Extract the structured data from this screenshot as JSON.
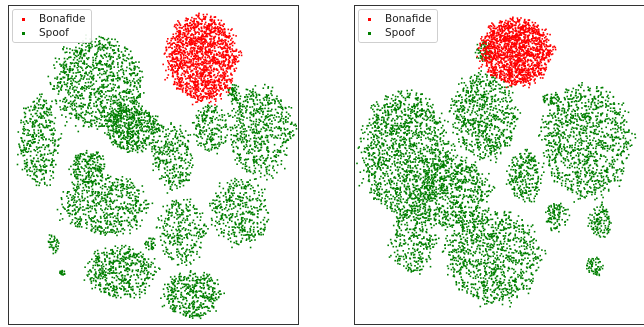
{
  "chart_data": [
    {
      "type": "scatter",
      "title": "",
      "xlabel": "",
      "ylabel": "",
      "grid": false,
      "axes_ticks": false,
      "legend_position": "top-left",
      "series": [
        {
          "name": "Bonafide",
          "color": "#ff0000",
          "clusters": [
            {
              "x": 0.66,
              "y": 0.84,
              "rx": 0.12,
              "ry": 0.13,
              "n": 1600
            }
          ]
        },
        {
          "name": "Spoof",
          "color": "#007f00",
          "clusters": [
            {
              "x": 0.3,
              "y": 0.76,
              "rx": 0.15,
              "ry": 0.14,
              "n": 1000
            },
            {
              "x": 0.42,
              "y": 0.62,
              "rx": 0.09,
              "ry": 0.07,
              "n": 500
            },
            {
              "x": 0.1,
              "y": 0.58,
              "rx": 0.07,
              "ry": 0.14,
              "n": 400
            },
            {
              "x": 0.27,
              "y": 0.5,
              "rx": 0.06,
              "ry": 0.05,
              "n": 200
            },
            {
              "x": 0.56,
              "y": 0.53,
              "rx": 0.07,
              "ry": 0.1,
              "n": 300
            },
            {
              "x": 0.69,
              "y": 0.62,
              "rx": 0.06,
              "ry": 0.07,
              "n": 200
            },
            {
              "x": 0.86,
              "y": 0.61,
              "rx": 0.11,
              "ry": 0.14,
              "n": 600
            },
            {
              "x": 0.33,
              "y": 0.38,
              "rx": 0.15,
              "ry": 0.09,
              "n": 600
            },
            {
              "x": 0.79,
              "y": 0.36,
              "rx": 0.1,
              "ry": 0.1,
              "n": 400
            },
            {
              "x": 0.59,
              "y": 0.3,
              "rx": 0.08,
              "ry": 0.1,
              "n": 300
            },
            {
              "x": 0.38,
              "y": 0.17,
              "rx": 0.12,
              "ry": 0.08,
              "n": 500
            },
            {
              "x": 0.63,
              "y": 0.1,
              "rx": 0.1,
              "ry": 0.07,
              "n": 400
            },
            {
              "x": 0.15,
              "y": 0.26,
              "rx": 0.02,
              "ry": 0.03,
              "n": 40
            },
            {
              "x": 0.48,
              "y": 0.26,
              "rx": 0.02,
              "ry": 0.02,
              "n": 30
            },
            {
              "x": 0.18,
              "y": 0.17,
              "rx": 0.01,
              "ry": 0.01,
              "n": 15
            },
            {
              "x": 0.77,
              "y": 0.73,
              "rx": 0.02,
              "ry": 0.03,
              "n": 50
            }
          ]
        }
      ]
    },
    {
      "type": "scatter",
      "title": "",
      "xlabel": "",
      "ylabel": "",
      "grid": false,
      "axes_ticks": false,
      "legend_position": "top-left",
      "series": [
        {
          "name": "Bonafide",
          "color": "#ff0000",
          "clusters": [
            {
              "x": 0.55,
              "y": 0.86,
              "rx": 0.12,
              "ry": 0.1,
              "n": 1600
            }
          ]
        },
        {
          "name": "Spoof",
          "color": "#007f00",
          "clusters": [
            {
              "x": 0.17,
              "y": 0.54,
              "rx": 0.15,
              "ry": 0.19,
              "n": 1400
            },
            {
              "x": 0.44,
              "y": 0.66,
              "rx": 0.11,
              "ry": 0.13,
              "n": 700
            },
            {
              "x": 0.33,
              "y": 0.42,
              "rx": 0.13,
              "ry": 0.11,
              "n": 700
            },
            {
              "x": 0.79,
              "y": 0.58,
              "rx": 0.15,
              "ry": 0.17,
              "n": 1100
            },
            {
              "x": 0.58,
              "y": 0.47,
              "rx": 0.06,
              "ry": 0.08,
              "n": 250
            },
            {
              "x": 0.2,
              "y": 0.27,
              "rx": 0.08,
              "ry": 0.1,
              "n": 300
            },
            {
              "x": 0.47,
              "y": 0.22,
              "rx": 0.16,
              "ry": 0.14,
              "n": 1000
            },
            {
              "x": 0.69,
              "y": 0.34,
              "rx": 0.04,
              "ry": 0.05,
              "n": 100
            },
            {
              "x": 0.84,
              "y": 0.33,
              "rx": 0.04,
              "ry": 0.05,
              "n": 120
            },
            {
              "x": 0.82,
              "y": 0.19,
              "rx": 0.03,
              "ry": 0.03,
              "n": 60
            },
            {
              "x": 0.44,
              "y": 0.86,
              "rx": 0.03,
              "ry": 0.03,
              "n": 60
            },
            {
              "x": 0.67,
              "y": 0.71,
              "rx": 0.03,
              "ry": 0.02,
              "n": 40
            }
          ]
        }
      ]
    }
  ]
}
